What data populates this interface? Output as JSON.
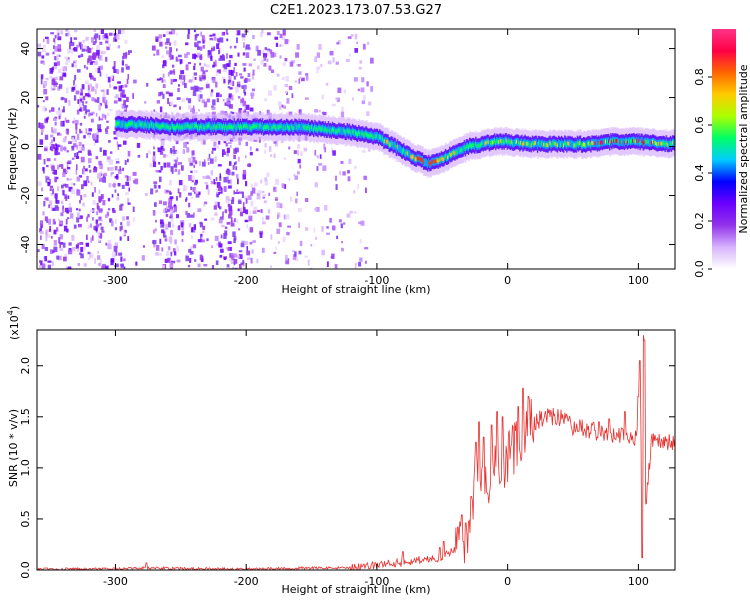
{
  "title": "C2E1.2023.173.07.53.G27",
  "chart_data": [
    {
      "type": "heatmap",
      "xlabel": "Height of straight line (km)",
      "ylabel": "Frequency (Hz)",
      "xlim": [
        -360,
        128
      ],
      "ylim": [
        -50,
        48
      ],
      "x_ticks": [
        -300,
        -200,
        -100,
        0,
        100
      ],
      "y_ticks": [
        -40,
        -20,
        0,
        20,
        40
      ],
      "colorbar": {
        "label": "Normalized spectral amplitude",
        "range": [
          0,
          1
        ],
        "ticks": [
          "0.0",
          "0.2",
          "0.4",
          "0.6",
          "0.8"
        ],
        "colors": [
          "#ffffff",
          "#d8b4fe",
          "#9333ea",
          "#6a00ff",
          "#0000ff",
          "#00ccff",
          "#00ff66",
          "#aaff00",
          "#ffcc00",
          "#ff6600",
          "#ff0044",
          "#ff3388"
        ]
      },
      "ridge": {
        "x": [
          -300,
          -280,
          -260,
          -240,
          -200,
          -180,
          -160,
          -140,
          -120,
          -100,
          -90,
          -80,
          -70,
          -60,
          -50,
          -40,
          -30,
          -20,
          -10,
          0,
          20,
          40,
          60,
          80,
          100,
          128
        ],
        "y": [
          9,
          9,
          8,
          8,
          8,
          8,
          8,
          7,
          6,
          4,
          1,
          -2,
          -5,
          -7,
          -5,
          -2,
          0,
          1,
          2,
          2,
          1,
          1,
          1,
          2,
          2,
          1
        ]
      }
    },
    {
      "type": "line",
      "xlabel": "Height of straight line (km)",
      "ylabel": "SNR (10 * v/v)",
      "y_exponent_label": "(x10",
      "y_exponent_power": "4",
      "y_exponent_close": ")",
      "xlim": [
        -360,
        128
      ],
      "ylim": [
        0,
        2.35
      ],
      "x_ticks": [
        -300,
        -200,
        -100,
        0,
        100
      ],
      "y_ticks": [
        "0.0",
        "0.5",
        "1.0",
        "1.5",
        "2.0"
      ],
      "color": "#e8312f",
      "trend": {
        "x": [
          -360,
          -300,
          -280,
          -200,
          -150,
          -120,
          -110,
          -100,
          -90,
          -80,
          -70,
          -60,
          -50,
          -40,
          -30,
          -25,
          -20,
          -15,
          -10,
          -5,
          0,
          10,
          20,
          30,
          40,
          50,
          60,
          80,
          100,
          103,
          105,
          110,
          128
        ],
        "y": [
          0.01,
          0.01,
          0.02,
          0.01,
          0.02,
          0.02,
          0.03,
          0.05,
          0.07,
          0.07,
          0.1,
          0.1,
          0.13,
          0.2,
          0.4,
          0.85,
          0.8,
          0.9,
          1.0,
          1.0,
          1.1,
          1.25,
          1.45,
          1.5,
          1.5,
          1.4,
          1.38,
          1.32,
          1.3,
          1.3,
          0.55,
          1.25,
          1.25
        ]
      },
      "spikes": [
        {
          "x": -276,
          "y": 0.07
        },
        {
          "x": -80,
          "y": 0.18
        },
        {
          "x": -52,
          "y": 0.22
        },
        {
          "x": -49,
          "y": 0.28
        },
        {
          "x": -38,
          "y": 0.42
        },
        {
          "x": -35,
          "y": 0.54
        },
        {
          "x": -32,
          "y": 0.46
        },
        {
          "x": -28,
          "y": 0.72
        },
        {
          "x": -24,
          "y": 1.25
        },
        {
          "x": -22,
          "y": 1.45
        },
        {
          "x": -18,
          "y": 1.3
        },
        {
          "x": -12,
          "y": 1.42
        },
        {
          "x": -8,
          "y": 1.55
        },
        {
          "x": -4,
          "y": 1.5
        },
        {
          "x": 8,
          "y": 1.6
        },
        {
          "x": 12,
          "y": 1.78
        },
        {
          "x": 16,
          "y": 1.7
        },
        {
          "x": 70,
          "y": 1.45
        },
        {
          "x": 78,
          "y": 1.48
        },
        {
          "x": 90,
          "y": 1.55
        },
        {
          "x": 100,
          "y": 1.7
        },
        {
          "x": 101,
          "y": 2.05
        },
        {
          "x": 103,
          "y": 0.12
        },
        {
          "x": 104,
          "y": 2.3
        },
        {
          "x": 105,
          "y": 2.25
        }
      ]
    }
  ]
}
